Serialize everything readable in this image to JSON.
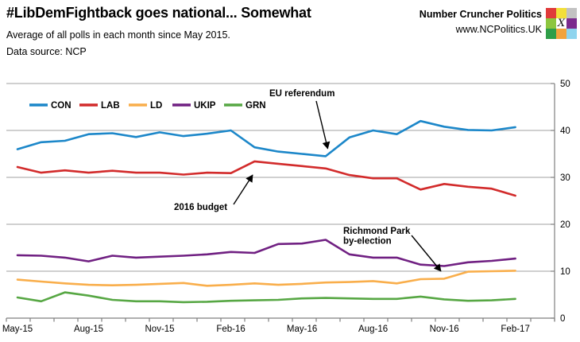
{
  "header": {
    "title": "#LibDemFightback goes national... Somewhat",
    "subtitle": "Average of all polls in each month since May 2015.",
    "data_source": "Data source: NCP",
    "brand": "Number Cruncher Politics",
    "url": "www.NCPolitics.UK",
    "logo_letter": "X",
    "logo_cells": [
      "#e03a3a",
      "#f2df3a",
      "#c2c2c2",
      "#8dc63f",
      "X",
      "#7b2b8e",
      "#2f9e48",
      "#f2a33c",
      "#8ed4ee"
    ]
  },
  "chart_data": {
    "type": "line",
    "title": "#LibDemFightback goes national... Somewhat",
    "subtitle": "Average of all polls in each month since May 2015.",
    "source": "Data source: NCP",
    "categories": [
      "May-15",
      "Jun-15",
      "Jul-15",
      "Aug-15",
      "Sep-15",
      "Oct-15",
      "Nov-15",
      "Dec-15",
      "Jan-16",
      "Feb-16",
      "Mar-16",
      "Apr-16",
      "May-16",
      "Jun-16",
      "Jul-16",
      "Aug-16",
      "Sep-16",
      "Oct-16",
      "Nov-16",
      "Dec-16",
      "Jan-17",
      "Feb-17"
    ],
    "x_tick_labels": [
      "May-15",
      "Aug-15",
      "Nov-15",
      "Feb-16",
      "May-16",
      "Aug-16",
      "Nov-16",
      "Feb-17"
    ],
    "series": [
      {
        "name": "CON",
        "color": "#1c87c9",
        "values": [
          36.0,
          37.5,
          37.8,
          39.2,
          39.4,
          38.6,
          39.6,
          38.8,
          39.3,
          40.0,
          36.4,
          35.5,
          35.0,
          34.5,
          38.5,
          40.0,
          39.2,
          42.0,
          40.8,
          40.1,
          40.0,
          40.7
        ]
      },
      {
        "name": "LAB",
        "color": "#d22b2b",
        "values": [
          32.2,
          31.0,
          31.5,
          31.0,
          31.4,
          31.0,
          31.0,
          30.6,
          31.0,
          30.9,
          33.4,
          32.9,
          32.4,
          31.9,
          30.5,
          29.8,
          29.8,
          27.4,
          28.6,
          28.0,
          27.6,
          26.1
        ]
      },
      {
        "name": "LD",
        "color": "#f9ae4b",
        "values": [
          8.2,
          7.8,
          7.4,
          7.1,
          7.0,
          7.1,
          7.3,
          7.5,
          6.9,
          7.1,
          7.4,
          7.1,
          7.3,
          7.6,
          7.7,
          7.9,
          7.4,
          8.3,
          8.4,
          9.9,
          10.0,
          10.1
        ]
      },
      {
        "name": "UKIP",
        "color": "#702082",
        "values": [
          13.4,
          13.3,
          12.9,
          12.1,
          13.3,
          12.9,
          13.1,
          13.3,
          13.6,
          14.1,
          13.9,
          15.8,
          15.9,
          16.7,
          13.6,
          12.9,
          12.9,
          11.4,
          11.1,
          11.9,
          12.2,
          12.7
        ]
      },
      {
        "name": "GRN",
        "color": "#57a744",
        "values": [
          4.4,
          3.6,
          5.5,
          4.8,
          3.9,
          3.6,
          3.6,
          3.4,
          3.5,
          3.7,
          3.8,
          3.9,
          4.2,
          4.3,
          4.2,
          4.1,
          4.1,
          4.6,
          4.0,
          3.7,
          3.8,
          4.1
        ]
      }
    ],
    "ylim": [
      0,
      50
    ],
    "y_ticks": [
      0,
      10,
      20,
      30,
      40,
      50
    ],
    "y_axis_side": "right",
    "grid": true,
    "legend_position": "top-left-inside",
    "annotations": [
      {
        "id": "eu-referendum",
        "label": "EU referendum",
        "lines": [
          "EU referendum"
        ],
        "points_at": "CON Jun-16"
      },
      {
        "id": "budget-2016",
        "label": "2016 budget",
        "lines": [
          "2016 budget"
        ],
        "points_at": "LAB Mar-16"
      },
      {
        "id": "richmond-park",
        "label": "Richmond Park by-election",
        "lines": [
          "Richmond Park",
          "by-election"
        ],
        "points_at": "LD Nov-16"
      }
    ]
  }
}
